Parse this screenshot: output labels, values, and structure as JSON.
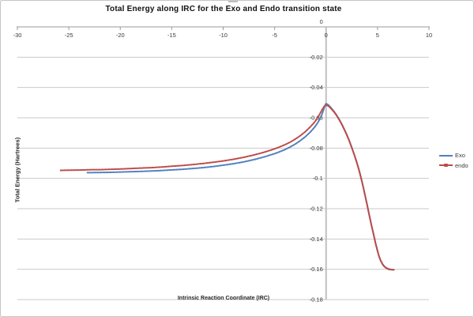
{
  "frame": {
    "background": "#ffffff",
    "border_color": "#c6c6c6"
  },
  "chart_data": {
    "type": "line",
    "title": "Total Energy along IRC for the Exo and Endo transition state",
    "xlabel": "Intrinsic Reaction Coordinate (IRC)",
    "ylabel": "Total Energy (Hartrees)",
    "xlim": [
      -30,
      10
    ],
    "ylim": [
      0,
      -0.18
    ],
    "x_tick_values": [
      -30,
      -25,
      -20,
      -15,
      -10,
      -5,
      0,
      5,
      10
    ],
    "x_tick_labels": [
      "-30",
      "-25",
      "-20",
      "-15",
      "-10",
      "-5",
      "0",
      "5",
      "10"
    ],
    "y_tick_values": [
      0,
      -0.02,
      -0.04,
      -0.06,
      -0.08,
      -0.1,
      -0.12,
      -0.14,
      -0.16,
      -0.18
    ],
    "y_tick_labels": [
      "0",
      "-0.02",
      "-0.04",
      "-0.06",
      "-0.08",
      "-0.1",
      "-0.12",
      "-0.14",
      "-0.16",
      "-0.18"
    ],
    "grid": "horizontal",
    "legend_position": "right",
    "axis_color": "#999999",
    "y_axis_line_color": "#c0c0c0",
    "gridline_color": "#c9c9c9",
    "tick_label_color": "#3a3a3a",
    "series": [
      {
        "name": "Exo",
        "color": "#4f81bd",
        "marker": "dot",
        "points": [
          [
            -23.2,
            -0.0962
          ],
          [
            -22,
            -0.0961
          ],
          [
            -21,
            -0.096
          ],
          [
            -20,
            -0.0958
          ],
          [
            -19,
            -0.0956
          ],
          [
            -18,
            -0.0954
          ],
          [
            -17,
            -0.0951
          ],
          [
            -16,
            -0.0948
          ],
          [
            -15,
            -0.0944
          ],
          [
            -14,
            -0.094
          ],
          [
            -13,
            -0.0935
          ],
          [
            -12,
            -0.0929
          ],
          [
            -11,
            -0.0922
          ],
          [
            -10,
            -0.0913
          ],
          [
            -9,
            -0.0903
          ],
          [
            -8,
            -0.0891
          ],
          [
            -7,
            -0.0876
          ],
          [
            -6,
            -0.0858
          ],
          [
            -5,
            -0.0837
          ],
          [
            -4.5,
            -0.0824
          ],
          [
            -4,
            -0.081
          ],
          [
            -3.5,
            -0.0793
          ],
          [
            -3,
            -0.0774
          ],
          [
            -2.5,
            -0.0751
          ],
          [
            -2,
            -0.0724
          ],
          [
            -1.5,
            -0.0692
          ],
          [
            -1.2,
            -0.0669
          ],
          [
            -1,
            -0.0652
          ],
          [
            -0.8,
            -0.0632
          ],
          [
            -0.6,
            -0.0608
          ],
          [
            -0.4,
            -0.0578
          ],
          [
            -0.2,
            -0.0539
          ],
          [
            -0.1,
            -0.0517
          ],
          [
            0,
            -0.0506
          ],
          [
            0.2,
            -0.0514
          ],
          [
            0.4,
            -0.0528
          ],
          [
            0.6,
            -0.0544
          ],
          [
            0.8,
            -0.0561
          ],
          [
            1,
            -0.058
          ],
          [
            1.25,
            -0.0607
          ],
          [
            1.5,
            -0.0638
          ],
          [
            1.75,
            -0.0672
          ],
          [
            2,
            -0.0709
          ],
          [
            2.25,
            -0.0751
          ],
          [
            2.5,
            -0.0796
          ],
          [
            2.75,
            -0.0845
          ],
          [
            3,
            -0.0897
          ],
          [
            3.2,
            -0.0943
          ],
          [
            3.4,
            -0.0995
          ],
          [
            3.6,
            -0.1052
          ],
          [
            3.8,
            -0.1113
          ],
          [
            4,
            -0.1178
          ],
          [
            4.2,
            -0.1243
          ],
          [
            4.4,
            -0.1306
          ],
          [
            4.6,
            -0.1364
          ],
          [
            4.8,
            -0.1425
          ],
          [
            5,
            -0.1478
          ],
          [
            5.15,
            -0.1513
          ],
          [
            5.3,
            -0.1541
          ],
          [
            5.5,
            -0.1567
          ],
          [
            5.7,
            -0.1583
          ],
          [
            5.9,
            -0.1592
          ],
          [
            6.1,
            -0.1598
          ],
          [
            6.3,
            -0.1601
          ],
          [
            6.5,
            -0.1602
          ],
          [
            6.6,
            -0.1603
          ]
        ]
      },
      {
        "name": "endo",
        "color": "#be4b48",
        "marker": "dot",
        "points": [
          [
            -25.8,
            -0.0947
          ],
          [
            -25,
            -0.0946
          ],
          [
            -24,
            -0.0945
          ],
          [
            -23,
            -0.0943
          ],
          [
            -22,
            -0.0942
          ],
          [
            -21,
            -0.094
          ],
          [
            -20,
            -0.0938
          ],
          [
            -19,
            -0.0935
          ],
          [
            -18,
            -0.0932
          ],
          [
            -17,
            -0.0929
          ],
          [
            -16,
            -0.0925
          ],
          [
            -15,
            -0.092
          ],
          [
            -14,
            -0.0915
          ],
          [
            -13,
            -0.0909
          ],
          [
            -12,
            -0.0902
          ],
          [
            -11,
            -0.0894
          ],
          [
            -10,
            -0.0885
          ],
          [
            -9,
            -0.0874
          ],
          [
            -8,
            -0.0861
          ],
          [
            -7,
            -0.0845
          ],
          [
            -6,
            -0.0827
          ],
          [
            -5,
            -0.0805
          ],
          [
            -4.5,
            -0.0792
          ],
          [
            -4,
            -0.0778
          ],
          [
            -3.5,
            -0.0761
          ],
          [
            -3,
            -0.0741
          ],
          [
            -2.5,
            -0.0718
          ],
          [
            -2,
            -0.0691
          ],
          [
            -1.5,
            -0.0658
          ],
          [
            -1.2,
            -0.0635
          ],
          [
            -1,
            -0.0618
          ],
          [
            -0.8,
            -0.0598
          ],
          [
            -0.6,
            -0.0574
          ],
          [
            -0.4,
            -0.0549
          ],
          [
            -0.2,
            -0.0527
          ],
          [
            0,
            -0.0516
          ],
          [
            0.2,
            -0.0521
          ],
          [
            0.4,
            -0.0533
          ],
          [
            0.6,
            -0.0548
          ],
          [
            0.8,
            -0.0564
          ],
          [
            1,
            -0.0583
          ],
          [
            1.25,
            -0.061
          ],
          [
            1.5,
            -0.064
          ],
          [
            1.75,
            -0.0674
          ],
          [
            2,
            -0.0711
          ],
          [
            2.25,
            -0.0753
          ],
          [
            2.5,
            -0.0798
          ],
          [
            2.75,
            -0.0847
          ],
          [
            3,
            -0.0899
          ],
          [
            3.2,
            -0.0945
          ],
          [
            3.4,
            -0.0997
          ],
          [
            3.6,
            -0.1054
          ],
          [
            3.8,
            -0.1115
          ],
          [
            4,
            -0.118
          ],
          [
            4.2,
            -0.1245
          ],
          [
            4.4,
            -0.1308
          ],
          [
            4.6,
            -0.1366
          ],
          [
            4.8,
            -0.1427
          ],
          [
            5,
            -0.148
          ],
          [
            5.15,
            -0.1515
          ],
          [
            5.3,
            -0.1543
          ],
          [
            5.5,
            -0.1569
          ],
          [
            5.7,
            -0.1585
          ],
          [
            5.9,
            -0.1594
          ],
          [
            6.1,
            -0.16
          ],
          [
            6.3,
            -0.1602
          ],
          [
            6.5,
            -0.1603
          ],
          [
            6.6,
            -0.1604
          ]
        ]
      }
    ]
  }
}
